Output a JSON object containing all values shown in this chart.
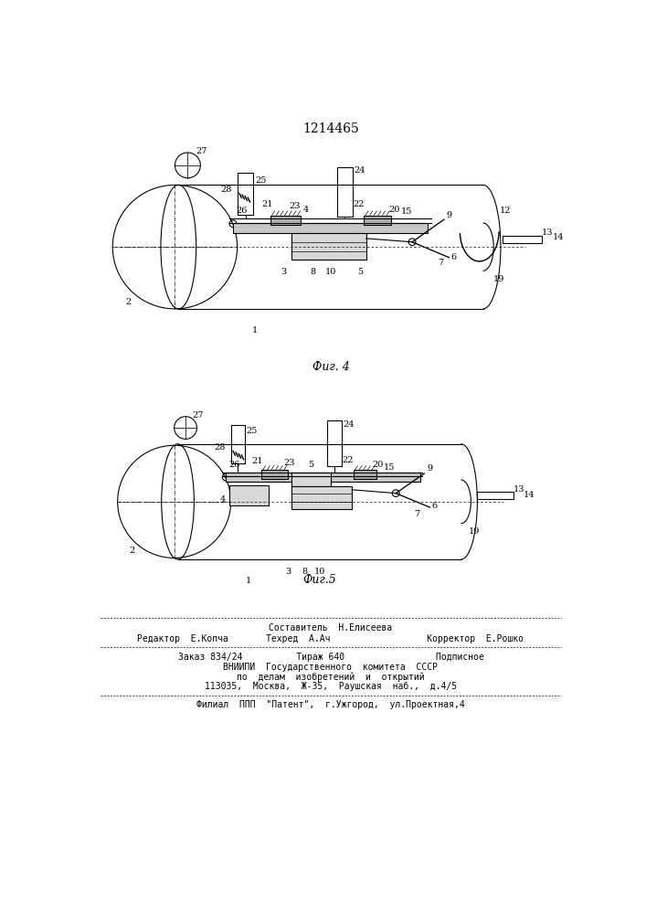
{
  "title": "1214465",
  "fig4_label": "Фиг. 4",
  "fig5_label": "Фиг.5",
  "bg_color": "#ffffff",
  "line_color": "#000000",
  "footer_lines": [
    "Составитель  Н.Елисеева",
    "Редактор  Е.Копча       Техред  А.Ач                  Корректор  Е.Рошко",
    "Заказ 834/24          Тираж 640                 Подписное",
    "ВНИИПИ  Государственного  комитета  СССР",
    "по  делам  изобретений  и  открытий",
    "113035,  Москва,  Ж-35,  Раушская  наб.,  д.4/5",
    "Филиал  ППП  \"Патент\",  г.Ужгород,  ул.Проектная,4"
  ]
}
